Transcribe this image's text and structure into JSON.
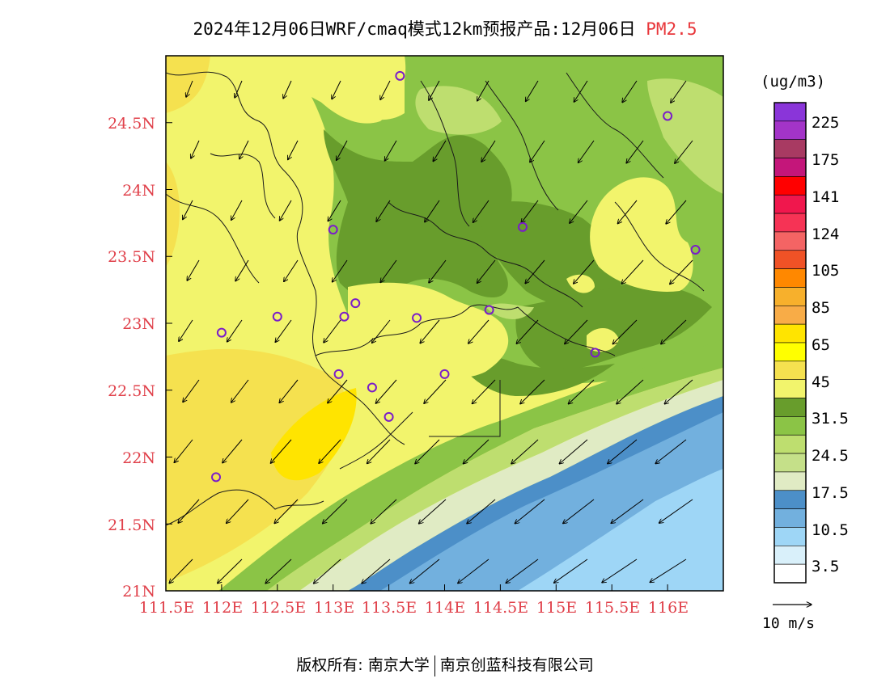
{
  "title": {
    "main": "2024年12月06日WRF/cmaq模式12km预报产品:12月06日",
    "pollutant": "PM2.5"
  },
  "y_axis": {
    "labels": [
      "24.5N",
      "24N",
      "23.5N",
      "23N",
      "22.5N",
      "22N",
      "21.5N",
      "21N"
    ],
    "range_deg": [
      21,
      25
    ],
    "color": "#e0404a"
  },
  "x_axis": {
    "labels": [
      "111.5E",
      "112E",
      "112.5E",
      "113E",
      "113.5E",
      "114E",
      "114.5E",
      "115E",
      "115.5E",
      "116E"
    ],
    "range_deg": [
      111.5,
      116.5
    ],
    "color": "#e0404a"
  },
  "colorbar": {
    "unit": "(ug/m3)",
    "labels": [
      "225",
      "175",
      "141",
      "124",
      "105",
      "85",
      "65",
      "45",
      "31.5",
      "24.5",
      "17.5",
      "10.5",
      "3.5"
    ],
    "colors_top_to_bottom": [
      "#8a35d9",
      "#a334c8",
      "#a83a62",
      "#c4167a",
      "#ff0000",
      "#f0174d",
      "#f63355",
      "#f46464",
      "#f05226",
      "#ff8800",
      "#f7b02c",
      "#f8ac47",
      "#ffe400",
      "#ffff00",
      "#f5e14f",
      "#f2f46c",
      "#689d2c",
      "#8bc446",
      "#bede6f",
      "#c5e089",
      "#e0ebc4",
      "#4c8fc8",
      "#72b0de",
      "#9ed6f6",
      "#d9f0fa",
      "#ffffff"
    ]
  },
  "wind_reference": {
    "label": "10 m/s"
  },
  "footer": {
    "copyright": "版权所有: 南京大学",
    "company": "南京创蓝科技有限公司"
  },
  "legend_colors": {
    "yellow_45_65": "#f2f46c",
    "yellow_dark": "#f5e14f",
    "bright_yellow": "#ffe400",
    "green_dark": "#689d2c",
    "green_mid": "#8bc446",
    "green_light": "#bede6f",
    "green_pale": "#e0ebc4",
    "blue_dark": "#4c8fc8",
    "blue_mid": "#72b0de",
    "blue_light": "#9ed6f6"
  },
  "stations": [
    {
      "lon": 113.6,
      "lat": 24.85
    },
    {
      "lon": 116.0,
      "lat": 24.55
    },
    {
      "lon": 113.0,
      "lat": 23.7
    },
    {
      "lon": 114.7,
      "lat": 23.72
    },
    {
      "lon": 116.25,
      "lat": 23.55
    },
    {
      "lon": 113.2,
      "lat": 23.15
    },
    {
      "lon": 113.1,
      "lat": 23.05
    },
    {
      "lon": 113.75,
      "lat": 23.04
    },
    {
      "lon": 114.4,
      "lat": 23.1
    },
    {
      "lon": 112.5,
      "lat": 23.05
    },
    {
      "lon": 112.0,
      "lat": 22.93
    },
    {
      "lon": 115.35,
      "lat": 22.78
    },
    {
      "lon": 113.05,
      "lat": 22.62
    },
    {
      "lon": 113.35,
      "lat": 22.52
    },
    {
      "lon": 114.0,
      "lat": 22.62
    },
    {
      "lon": 113.5,
      "lat": 22.3
    },
    {
      "lon": 111.95,
      "lat": 21.85
    }
  ]
}
